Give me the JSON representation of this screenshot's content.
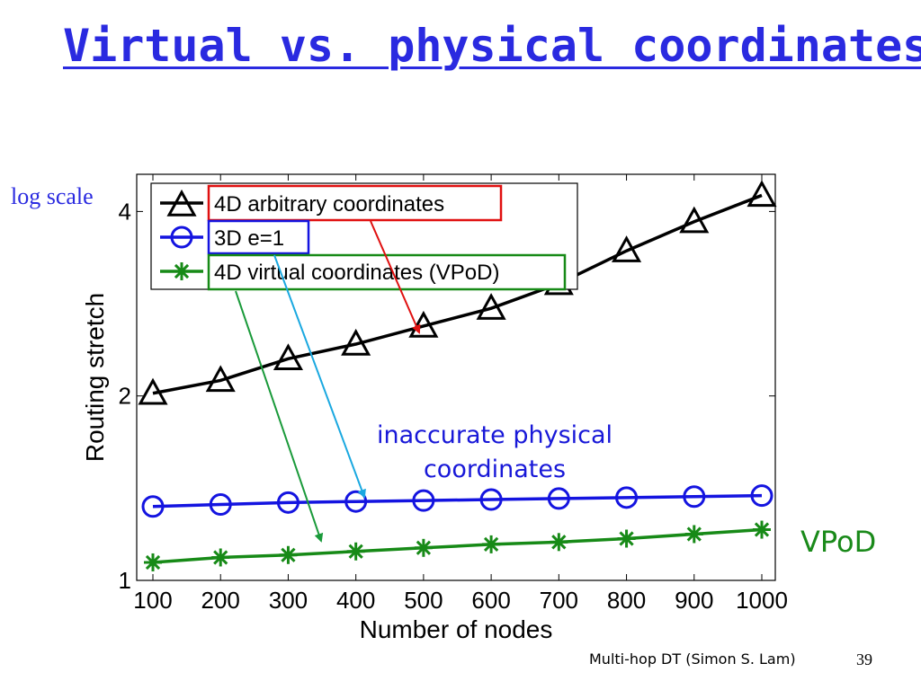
{
  "slide": {
    "title": "Virtual vs. physical coordinates",
    "log_label": "log scale",
    "callout_line1": "inaccurate physical",
    "callout_line2": "coordinates",
    "vpod_label": "VPoD",
    "footer": "Multi-hop DT (Simon S. Lam)",
    "page_number": "39"
  },
  "colors": {
    "title": "#2a2ae0",
    "black_series": "#000000",
    "blue_series": "#1414e0",
    "green_series": "#178a17",
    "arrow_red": "#e01010",
    "arrow_cyan": "#1aa8e0",
    "arrow_green": "#1a9a3a"
  },
  "chart_data": {
    "type": "line",
    "xlabel": "Number of nodes",
    "ylabel": "Routing stretch",
    "x": [
      100,
      200,
      300,
      400,
      500,
      600,
      700,
      800,
      900,
      1000
    ],
    "xlim": [
      100,
      1000
    ],
    "ylim": [
      1,
      4.6
    ],
    "yscale": "log",
    "yticks": [
      1,
      2,
      4
    ],
    "legend_position": "top-left",
    "series": [
      {
        "name": "4D arbitrary coordinates",
        "marker": "triangle",
        "color": "#000000",
        "values": [
          2.02,
          2.12,
          2.3,
          2.43,
          2.6,
          2.78,
          3.05,
          3.45,
          3.85,
          4.25
        ]
      },
      {
        "name": "3D e=1",
        "marker": "circle",
        "color": "#1414e0",
        "values": [
          1.32,
          1.33,
          1.34,
          1.345,
          1.35,
          1.355,
          1.36,
          1.365,
          1.37,
          1.375
        ]
      },
      {
        "name": "4D virtual coordinates (VPoD)",
        "marker": "asterisk",
        "color": "#178a17",
        "values": [
          1.07,
          1.09,
          1.1,
          1.115,
          1.13,
          1.145,
          1.155,
          1.17,
          1.19,
          1.21
        ]
      }
    ]
  }
}
